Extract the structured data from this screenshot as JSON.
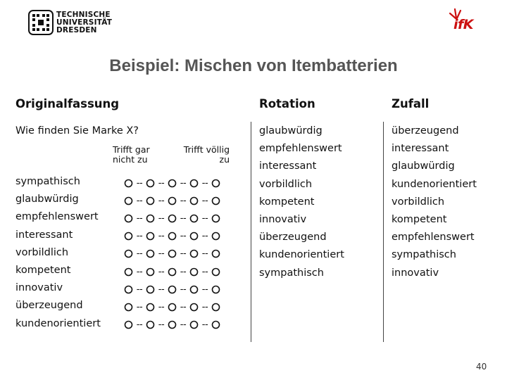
{
  "header": {
    "university_logo_lines": [
      "TECHNISCHE",
      "UNIVERSITÄT",
      "DRESDEN"
    ],
    "institute_logo_text": "ifK"
  },
  "title": "Beispiel: Mischen von Itembatterien",
  "columns": {
    "original": "Originalfassung",
    "rotation": "Rotation",
    "random": "Zufall"
  },
  "original": {
    "question": "Wie finden Sie Marke X?",
    "scale_left_label": "Trifft gar nicht zu",
    "scale_right_label": "Trifft völlig zu",
    "items": [
      "sympathisch",
      "glaubwürdig",
      "empfehlenswert",
      "interessant",
      "vorbildlich",
      "kompetent",
      "innovativ",
      "überzeugend",
      "kundenorientiert"
    ],
    "scale_points": 5
  },
  "rotation_items": [
    "glaubwürdig",
    "empfehlenswert",
    "interessant",
    "vorbildlich",
    "kompetent",
    "innovativ",
    "überzeugend",
    "kundenorientiert",
    "sympathisch"
  ],
  "random_items": [
    "überzeugend",
    "interessant",
    "glaubwürdig",
    "kundenorientiert",
    "vorbildlich",
    "kompetent",
    "empfehlenswert",
    "sympathisch",
    "innovativ"
  ],
  "page_number": "40",
  "colors": {
    "title": "#555555",
    "ifk_red": "#cc1111",
    "text": "#111111"
  }
}
